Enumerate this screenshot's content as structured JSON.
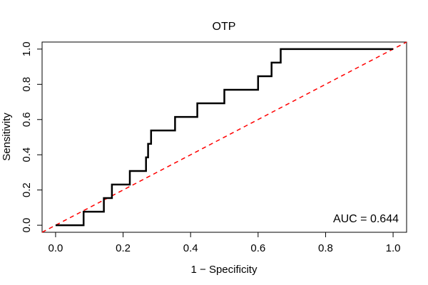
{
  "chart_data": {
    "type": "line",
    "title": "OTP",
    "xlabel": "1 − Specificity",
    "ylabel": "Sensitivity",
    "xlim": [
      -0.04,
      1.04
    ],
    "ylim": [
      -0.04,
      1.04
    ],
    "x_ticks": [
      0.0,
      0.2,
      0.4,
      0.6,
      0.8,
      1.0
    ],
    "x_tick_labels": [
      "0.0",
      "0.2",
      "0.4",
      "0.6",
      "0.8",
      "1.0"
    ],
    "y_ticks": [
      0.0,
      0.2,
      0.4,
      0.6,
      0.8,
      1.0
    ],
    "y_tick_labels": [
      "0.0",
      "0.2",
      "0.4",
      "0.6",
      "0.8",
      "1.0"
    ],
    "grid": false,
    "annotation": "AUC = 0.644",
    "series": [
      {
        "kind": "roc-step",
        "color": "#000000",
        "x": [
          0.0,
          0.083,
          0.083,
          0.143,
          0.143,
          0.167,
          0.167,
          0.22,
          0.22,
          0.268,
          0.268,
          0.274,
          0.274,
          0.283,
          0.283,
          0.295,
          0.295,
          0.354,
          0.354,
          0.42,
          0.42,
          0.5,
          0.5,
          0.6,
          0.6,
          0.64,
          0.64,
          0.667,
          0.667,
          1.0
        ],
        "y": [
          0.0,
          0.0,
          0.077,
          0.077,
          0.154,
          0.154,
          0.231,
          0.231,
          0.308,
          0.308,
          0.385,
          0.385,
          0.462,
          0.462,
          0.538,
          0.538,
          0.538,
          0.538,
          0.615,
          0.615,
          0.692,
          0.692,
          0.769,
          0.769,
          0.846,
          0.846,
          0.923,
          0.923,
          1.0,
          1.0
        ]
      },
      {
        "kind": "reference-diagonal",
        "color": "#ff0000",
        "dashed": true,
        "x": [
          -0.04,
          1.04
        ],
        "y": [
          -0.04,
          1.04
        ]
      }
    ]
  }
}
